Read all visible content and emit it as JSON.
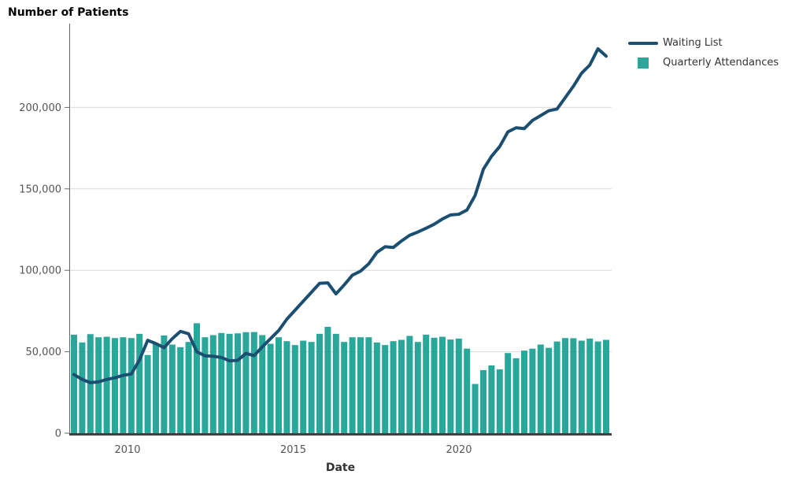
{
  "colors": {
    "line": "#1b4f72",
    "bar": "#2aa79b",
    "grid": "#d9d9d9",
    "axis": "#666666",
    "axis_bottom": "#404040",
    "tick_text": "#555555",
    "title_text": "#000000",
    "legend_text": "#333333"
  },
  "legend": {
    "items": [
      {
        "label": "Waiting List",
        "swatch": "line-swatch"
      },
      {
        "label": "Quarterly Attendances",
        "swatch": "square-swatch"
      }
    ]
  },
  "chart_data": {
    "type": "line+bar",
    "title": "Number of Patients",
    "xlabel": "Date",
    "ylabel": "Number of Patients",
    "ylim": [
      0,
      250000
    ],
    "grid": "horizontal",
    "legend_position": "top-right",
    "y_axis": {
      "tick_values": [
        0,
        50000,
        100000,
        150000,
        200000
      ],
      "tick_labels": [
        "0",
        "50,000",
        "100,000",
        "150,000",
        "200,000"
      ]
    },
    "x_axis": {
      "label": "Date",
      "tick_years": [
        2010,
        2015,
        2020
      ],
      "tick_labels": [
        "2010",
        "2015",
        "2020"
      ]
    },
    "categories": [
      "2008 Q1",
      "2008 Q2",
      "2008 Q3",
      "2008 Q4",
      "2009 Q1",
      "2009 Q2",
      "2009 Q3",
      "2009 Q4",
      "2010 Q1",
      "2010 Q2",
      "2010 Q3",
      "2010 Q4",
      "2011 Q1",
      "2011 Q2",
      "2011 Q3",
      "2011 Q4",
      "2012 Q1",
      "2012 Q2",
      "2012 Q3",
      "2012 Q4",
      "2013 Q1",
      "2013 Q2",
      "2013 Q3",
      "2013 Q4",
      "2014 Q1",
      "2014 Q2",
      "2014 Q3",
      "2014 Q4",
      "2015 Q1",
      "2015 Q2",
      "2015 Q3",
      "2015 Q4",
      "2016 Q1",
      "2016 Q2",
      "2016 Q3",
      "2016 Q4",
      "2017 Q1",
      "2017 Q2",
      "2017 Q3",
      "2017 Q4",
      "2018 Q1",
      "2018 Q2",
      "2018 Q3",
      "2018 Q4",
      "2019 Q1",
      "2019 Q2",
      "2019 Q3",
      "2019 Q4",
      "2020 Q1",
      "2020 Q2",
      "2020 Q3",
      "2020 Q4",
      "2021 Q1",
      "2021 Q2",
      "2021 Q3",
      "2021 Q4",
      "2022 Q1",
      "2022 Q2",
      "2022 Q3",
      "2022 Q4",
      "2023 Q1",
      "2023 Q2",
      "2023 Q3",
      "2023 Q4",
      "2024 Q1",
      "2024 Q2"
    ],
    "series": [
      {
        "name": "Waiting List",
        "type": "line",
        "color": "#1b4f72",
        "values": [
          36000,
          33000,
          31000,
          31500,
          33000,
          34000,
          35500,
          36300,
          45000,
          57000,
          55000,
          52500,
          58000,
          62500,
          61000,
          50000,
          47500,
          47200,
          46500,
          44400,
          44700,
          49000,
          47600,
          53000,
          58000,
          63000,
          70000,
          75500,
          81000,
          86500,
          92000,
          92300,
          85500,
          91000,
          97000,
          99500,
          104000,
          111000,
          114500,
          114000,
          118000,
          121500,
          123500,
          125800,
          128300,
          131500,
          134000,
          134400,
          137000,
          146000,
          162000,
          170000,
          176000,
          185000,
          187500,
          187000,
          192000,
          195000,
          198000,
          199000,
          206000,
          213000,
          221000,
          226000,
          236000,
          231500
        ]
      },
      {
        "name": "Quarterly Attendances",
        "type": "bar",
        "color": "#2aa79b",
        "values": [
          60500,
          55700,
          60800,
          58900,
          59200,
          58400,
          58900,
          58400,
          61000,
          48000,
          55200,
          60000,
          54400,
          52800,
          56000,
          67500,
          58900,
          60200,
          61500,
          61000,
          61300,
          62000,
          62100,
          60200,
          54900,
          58900,
          56500,
          54100,
          56800,
          56000,
          61000,
          65300,
          61000,
          56000,
          58900,
          58900,
          58900,
          55700,
          54100,
          56500,
          57300,
          59700,
          56000,
          60500,
          58600,
          59200,
          57500,
          58100,
          51900,
          30200,
          38700,
          41600,
          39200,
          49200,
          46000,
          50700,
          51900,
          54400,
          52400,
          56300,
          58400,
          58300,
          56800,
          58100,
          56300,
          57300
        ]
      }
    ]
  }
}
